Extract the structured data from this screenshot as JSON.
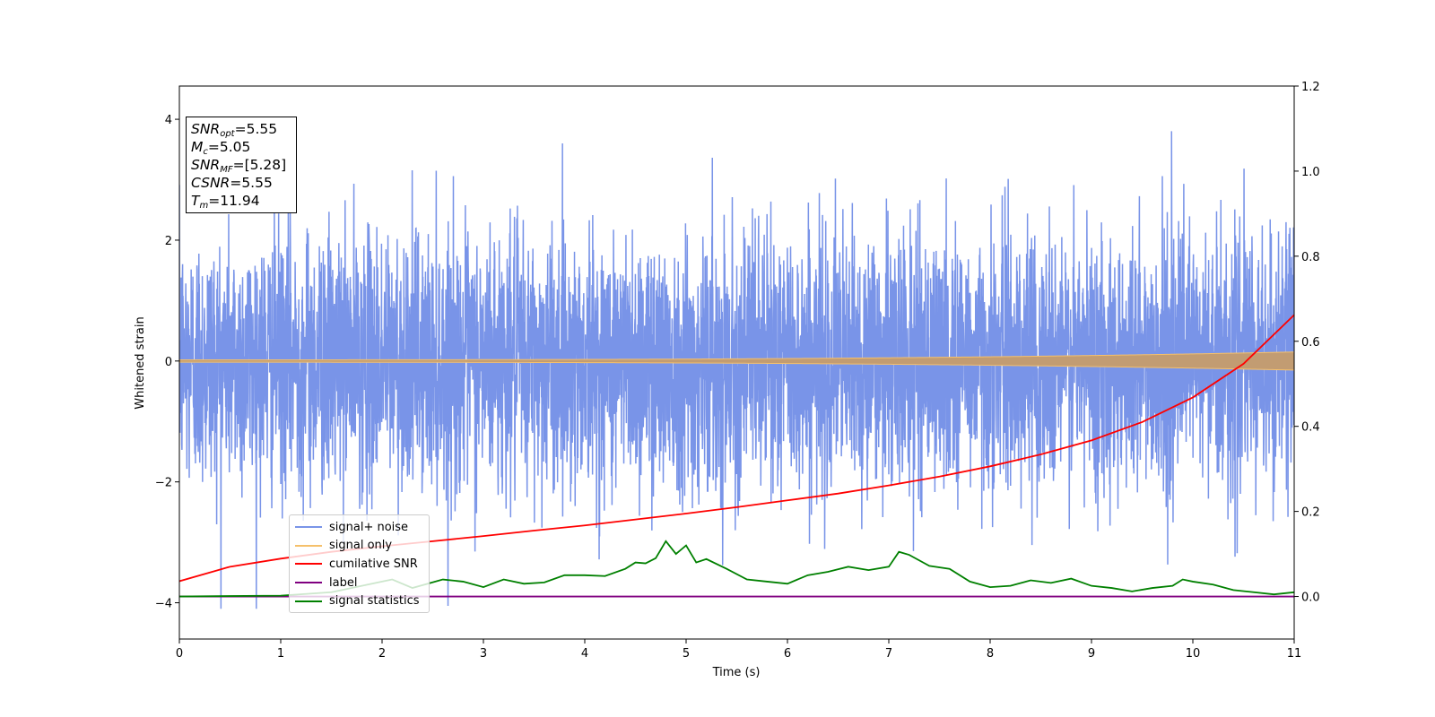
{
  "chart_data": {
    "type": "line",
    "xlabel": "Time (s)",
    "ylabel": "Whitened strain",
    "xlim": [
      0,
      11
    ],
    "ylim_left": [
      -4.6,
      4.55
    ],
    "ylim_right": [
      -0.1,
      1.2
    ],
    "x_ticks": [
      "0",
      "1",
      "2",
      "3",
      "4",
      "5",
      "6",
      "7",
      "8",
      "9",
      "10",
      "11"
    ],
    "y_left_ticks": [
      "4",
      "2",
      "0",
      "−2",
      "−4"
    ],
    "y_left_tick_values": [
      4,
      2,
      0,
      -2,
      -4
    ],
    "y_right_ticks": [
      "1.2",
      "1.0",
      "0.8",
      "0.6",
      "0.4",
      "0.2",
      "0.0"
    ],
    "y_right_tick_values": [
      1.2,
      1.0,
      0.8,
      0.6,
      0.4,
      0.2,
      0.0
    ],
    "grid": false,
    "legend_position": "lower-left",
    "series": [
      {
        "name": "signal+ noise",
        "color": "#7994e8",
        "axis": "left",
        "description": "noisy whitened strain, roughly within [-4.1, 4.1]"
      },
      {
        "name": "signal only",
        "color": "#f5c06b",
        "axis": "left",
        "description": "chirp envelope growing from ~0.02 at t=0 to ~0.15 at t=11"
      },
      {
        "name": "cumilative SNR",
        "color": "#ff0000",
        "axis": "right",
        "x": [
          0,
          0.5,
          1,
          1.5,
          2,
          2.5,
          3,
          3.5,
          4,
          4.5,
          5,
          5.5,
          6,
          6.5,
          7,
          7.5,
          8,
          8.5,
          9,
          9.5,
          10,
          10.5,
          11
        ],
        "y": [
          0.036,
          0.07,
          0.089,
          0.105,
          0.118,
          0.13,
          0.142,
          0.155,
          0.167,
          0.181,
          0.195,
          0.21,
          0.226,
          0.242,
          0.261,
          0.282,
          0.306,
          0.334,
          0.367,
          0.41,
          0.468,
          0.547,
          0.662
        ]
      },
      {
        "name": "label",
        "color": "#800080",
        "axis": "right",
        "x": [
          0,
          11
        ],
        "y": [
          0.0,
          0.0
        ]
      },
      {
        "name": "signal statistics",
        "color": "#008000",
        "axis": "right",
        "x": [
          0,
          1,
          1.5,
          2,
          2.1,
          2.3,
          2.6,
          2.8,
          3.0,
          3.2,
          3.4,
          3.6,
          3.8,
          4.0,
          4.2,
          4.4,
          4.5,
          4.6,
          4.7,
          4.8,
          4.9,
          5.0,
          5.1,
          5.2,
          5.4,
          5.6,
          5.8,
          6.0,
          6.2,
          6.4,
          6.6,
          6.8,
          7.0,
          7.1,
          7.2,
          7.4,
          7.6,
          7.8,
          8.0,
          8.2,
          8.4,
          8.6,
          8.8,
          9.0,
          9.2,
          9.4,
          9.6,
          9.8,
          9.9,
          10.0,
          10.2,
          10.4,
          10.6,
          10.8,
          11.0
        ],
        "y": [
          0.0,
          0.002,
          0.01,
          0.035,
          0.04,
          0.02,
          0.04,
          0.035,
          0.022,
          0.04,
          0.03,
          0.033,
          0.05,
          0.05,
          0.048,
          0.065,
          0.08,
          0.078,
          0.09,
          0.13,
          0.1,
          0.12,
          0.08,
          0.088,
          0.065,
          0.04,
          0.035,
          0.03,
          0.05,
          0.058,
          0.07,
          0.062,
          0.07,
          0.105,
          0.098,
          0.072,
          0.065,
          0.035,
          0.022,
          0.025,
          0.038,
          0.032,
          0.042,
          0.025,
          0.02,
          0.012,
          0.02,
          0.025,
          0.04,
          0.035,
          0.028,
          0.015,
          0.01,
          0.005,
          0.01
        ]
      }
    ],
    "annotation_box": [
      {
        "var": "SNR",
        "sub": "opt",
        "value": "=5.55"
      },
      {
        "var": "M",
        "sub": "c",
        "value": "=5.05"
      },
      {
        "var": "SNR",
        "sub": "MF",
        "value": "=[5.28]"
      },
      {
        "var": "CSNR",
        "sub": "",
        "value": "=5.55"
      },
      {
        "var": "T",
        "sub": "m",
        "value": "=11.94"
      }
    ]
  }
}
